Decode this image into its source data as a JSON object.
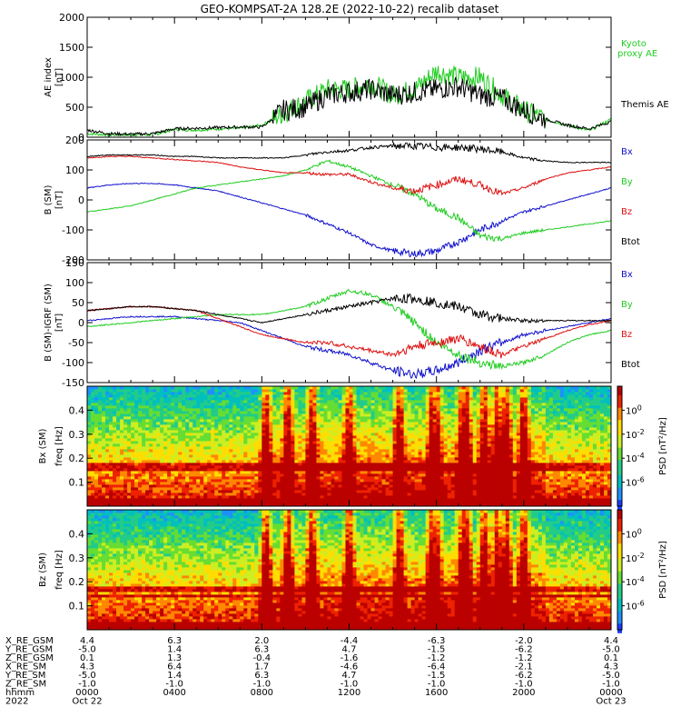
{
  "figure": {
    "title": "GEO-KOMPSAT-2A 128.2E (2022-10-22) recalib dataset"
  },
  "colors": {
    "black": "#000000",
    "green": "#22cc22",
    "red": "#dd1111",
    "blue": "#1111cc"
  },
  "chart_data": [
    {
      "type": "line",
      "name": "ae-index",
      "ylabel_line1": "AE index",
      "ylabel_line2": "[nT]",
      "ylim": [
        0,
        2000
      ],
      "yticks": [
        "0",
        "500",
        "1000",
        "1500",
        "2000"
      ],
      "x_hours": [
        0,
        1,
        2,
        3,
        4,
        5,
        6,
        7,
        8,
        9,
        10,
        11,
        12,
        13,
        14,
        15,
        16,
        17,
        18,
        19,
        20,
        21,
        22,
        23,
        24
      ],
      "series": [
        {
          "name": "Kyoto proxy AE",
          "legend": "Kyoto\nproxy AE",
          "legend_line1": "Kyoto",
          "legend_line2": "proxy AE",
          "color": "green",
          "values": [
            60,
            40,
            40,
            40,
            130,
            120,
            140,
            150,
            200,
            400,
            600,
            800,
            800,
            900,
            700,
            800,
            1100,
            1000,
            1000,
            700,
            450,
            300,
            200,
            110,
            300
          ]
        },
        {
          "name": "Themis AE",
          "legend": "Themis AE",
          "color": "black",
          "values": [
            120,
            60,
            50,
            60,
            140,
            150,
            160,
            170,
            170,
            450,
            500,
            700,
            750,
            800,
            700,
            750,
            800,
            850,
            700,
            650,
            450,
            300,
            200,
            140,
            260
          ]
        }
      ]
    },
    {
      "type": "line",
      "name": "b-sm",
      "ylabel_line1": "B (SM)",
      "ylabel_line2": "[nT]",
      "ylim": [
        -200,
        200
      ],
      "yticks": [
        "-200",
        "-100",
        "0",
        "100",
        "200"
      ],
      "x_hours": [
        0,
        1,
        2,
        3,
        4,
        5,
        6,
        7,
        8,
        9,
        10,
        11,
        12,
        13,
        14,
        15,
        16,
        17,
        18,
        19,
        20,
        21,
        22,
        23,
        24
      ],
      "series": [
        {
          "name": "Bx",
          "legend": "Bx",
          "color": "blue",
          "values": [
            40,
            50,
            55,
            55,
            50,
            40,
            30,
            10,
            -10,
            -30,
            -50,
            -80,
            -110,
            -150,
            -170,
            -180,
            -170,
            -140,
            -100,
            -70,
            -40,
            -20,
            0,
            20,
            40
          ]
        },
        {
          "name": "By",
          "legend": "By",
          "color": "green",
          "values": [
            -40,
            -30,
            -20,
            0,
            20,
            40,
            50,
            60,
            70,
            80,
            100,
            130,
            110,
            80,
            50,
            20,
            -30,
            -60,
            -120,
            -130,
            -110,
            -100,
            -90,
            -80,
            -70
          ]
        },
        {
          "name": "Bz",
          "legend": "Bz",
          "color": "red",
          "values": [
            140,
            145,
            145,
            140,
            135,
            130,
            125,
            110,
            100,
            90,
            90,
            85,
            85,
            60,
            40,
            30,
            50,
            70,
            50,
            20,
            40,
            70,
            90,
            100,
            110
          ]
        },
        {
          "name": "Btot",
          "legend": "Btot",
          "color": "black",
          "values": [
            145,
            150,
            150,
            150,
            145,
            145,
            140,
            140,
            140,
            140,
            150,
            160,
            165,
            175,
            180,
            180,
            175,
            175,
            170,
            160,
            140,
            130,
            125,
            125,
            125
          ]
        }
      ]
    },
    {
      "type": "line",
      "name": "b-minus-igrf",
      "ylabel_line1": "B (SM)-IGRF (SM)",
      "ylabel_line2": "[nT]",
      "ylim": [
        -150,
        150
      ],
      "yticks": [
        "-150",
        "-100",
        "-50",
        "0",
        "50",
        "100",
        "150"
      ],
      "x_hours": [
        0,
        1,
        2,
        3,
        4,
        5,
        6,
        7,
        8,
        9,
        10,
        11,
        12,
        13,
        14,
        15,
        16,
        17,
        18,
        19,
        20,
        21,
        22,
        23,
        24
      ],
      "series": [
        {
          "name": "Bx",
          "legend": "Bx",
          "color": "blue",
          "values": [
            5,
            10,
            15,
            15,
            15,
            10,
            5,
            0,
            -20,
            -40,
            -60,
            -70,
            -80,
            -100,
            -120,
            -130,
            -120,
            -100,
            -70,
            -50,
            -30,
            -20,
            -10,
            0,
            10
          ]
        },
        {
          "name": "By",
          "legend": "By",
          "color": "green",
          "values": [
            -10,
            -5,
            0,
            5,
            10,
            15,
            20,
            20,
            20,
            30,
            40,
            60,
            80,
            70,
            40,
            0,
            -50,
            -80,
            -100,
            -110,
            -100,
            -80,
            -50,
            -30,
            -20
          ]
        },
        {
          "name": "Bz",
          "legend": "Bz",
          "color": "red",
          "values": [
            30,
            35,
            40,
            40,
            35,
            30,
            10,
            -10,
            -30,
            -40,
            -50,
            -50,
            -60,
            -70,
            -80,
            -60,
            -50,
            -40,
            -60,
            -80,
            -60,
            -40,
            -20,
            -5,
            5
          ]
        },
        {
          "name": "Btot",
          "legend": "Btot",
          "color": "black",
          "values": [
            30,
            35,
            40,
            40,
            35,
            30,
            20,
            10,
            0,
            10,
            20,
            30,
            40,
            50,
            60,
            60,
            50,
            40,
            20,
            10,
            5,
            5,
            5,
            5,
            5
          ]
        }
      ]
    },
    {
      "type": "heatmap",
      "name": "spectrogram-bx",
      "ylabel_line1": "Bx (SM)",
      "ylabel_line2": "freq [Hz]",
      "yticks": [
        "0.1",
        "0.2",
        "0.3",
        "0.4"
      ],
      "ylim": [
        0,
        0.5
      ],
      "colorbar_label": "PSD [nT²/Hz]",
      "colorbar_ticks": [
        "10^0",
        "10^-2",
        "10^-4",
        "10^-6"
      ],
      "colorbar_exponents": [
        0,
        -2,
        -4,
        -6
      ],
      "broadband_bursts_hours": [
        8.2,
        9.2,
        10.3,
        12.0,
        14.3,
        15.8,
        16.0,
        17.2,
        17.4,
        18.2,
        18.8,
        19.2,
        20.0
      ],
      "narrowband_lines_hz": [
        0.16,
        0.18
      ]
    },
    {
      "type": "heatmap",
      "name": "spectrogram-bz",
      "ylabel_line1": "Bz (SM)",
      "ylabel_line2": "freq [Hz]",
      "yticks": [
        "0.1",
        "0.2",
        "0.3",
        "0.4"
      ],
      "ylim": [
        0,
        0.5
      ],
      "colorbar_label": "PSD [nT²/Hz]",
      "colorbar_ticks": [
        "10^0",
        "10^-2",
        "10^-4",
        "10^-6"
      ],
      "colorbar_exponents": [
        0,
        -2,
        -4,
        -6
      ],
      "broadband_bursts_hours": [
        8.2,
        9.2,
        10.3,
        12.0,
        14.3,
        15.8,
        16.0,
        17.2,
        17.4,
        18.2,
        18.8,
        19.2,
        20.0
      ],
      "narrowband_lines_hz": [
        0.14,
        0.17
      ]
    }
  ],
  "ephemeris": {
    "labels": [
      "X_RE_GSM",
      "Y_RE_GSM",
      "Z_RE_GSM",
      "X_RE_SM",
      "Y_RE_SM",
      "Z_RE_SM",
      "hhmm",
      "2022"
    ],
    "columns": [
      [
        "4.4",
        "-5.0",
        "0.1",
        "4.3",
        "-5.0",
        "-1.0",
        "0000",
        "Oct 22"
      ],
      [
        "6.3",
        "1.4",
        "1.3",
        "6.4",
        "1.4",
        "-1.0",
        "0400",
        ""
      ],
      [
        "2.0",
        "6.3",
        "-0.4",
        "1.7",
        "6.3",
        "-1.0",
        "0800",
        ""
      ],
      [
        "-4.4",
        "4.7",
        "-1.6",
        "-4.6",
        "4.7",
        "-1.0",
        "1200",
        ""
      ],
      [
        "-6.3",
        "-1.5",
        "-1.2",
        "-6.4",
        "-1.5",
        "-1.0",
        "1600",
        ""
      ],
      [
        "-2.0",
        "-6.2",
        "-1.2",
        "-2.1",
        "-6.2",
        "-1.0",
        "2000",
        ""
      ],
      [
        "4.4",
        "-5.0",
        "0.1",
        "4.3",
        "-5.0",
        "-1.0",
        "0000",
        "Oct 23"
      ]
    ]
  }
}
